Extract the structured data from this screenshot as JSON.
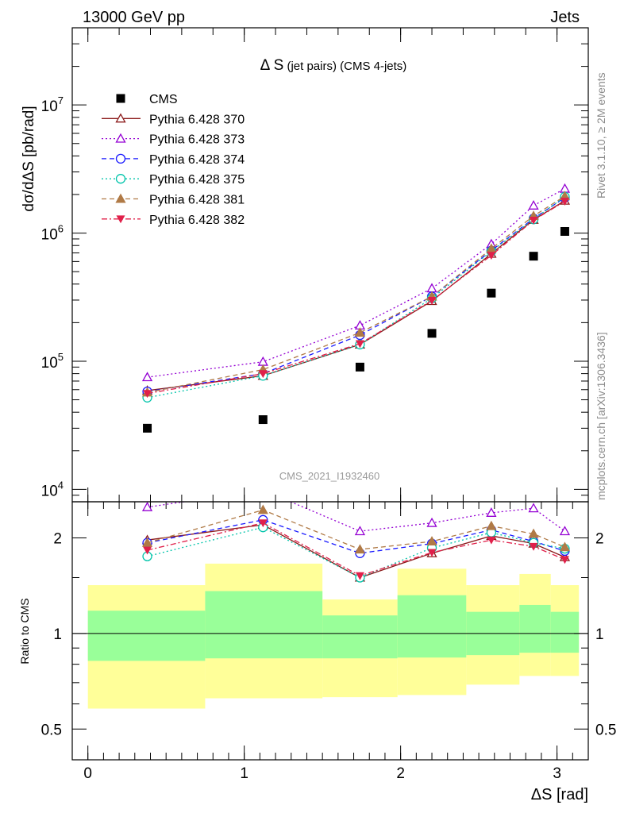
{
  "header": {
    "energy_label": "13000 GeV pp",
    "process_label": "Jets"
  },
  "side_text": {
    "rivet": "Rivet 3.1.10, ≥ 2M events",
    "mcplots": "mcplots.cern.ch [arXiv:1306.3436]"
  },
  "chart_data": [
    {
      "type": "scatter",
      "panel": "main",
      "title": "Δ S (jet pairs) (CMS 4-jets)",
      "title_main": "Δ S",
      "title_sub": " (jet pairs) (CMS 4-jets)",
      "ylabel": "dσ/dΔS [pb/rad]",
      "yscale": "log",
      "ylim": [
        8000,
        40000000
      ],
      "yticks": [
        {
          "v": 10000,
          "base": "10",
          "exp": "4"
        },
        {
          "v": 100000,
          "base": "10",
          "exp": "5"
        },
        {
          "v": 1000000,
          "base": "10",
          "exp": "6"
        },
        {
          "v": 10000000,
          "base": "10",
          "exp": "7"
        }
      ],
      "watermark": "CMS_2021_I1932460",
      "legend_position": "top-left",
      "x": [
        0.38,
        1.12,
        1.74,
        2.2,
        2.58,
        2.85,
        3.05
      ],
      "series": [
        {
          "name": "CMS",
          "color": "#000000",
          "marker": "square",
          "values": [
            30000,
            35000,
            90000,
            165000,
            340000,
            660000,
            1030000
          ]
        },
        {
          "name": "Pythia 6.428 370",
          "color": "#8b1a1a",
          "marker": "triangle-open",
          "dash": "solid",
          "values": [
            59000,
            77000,
            135000,
            295000,
            690000,
            1270000,
            1790000
          ]
        },
        {
          "name": "Pythia 6.428 373",
          "color": "#9400d3",
          "marker": "triangle-open",
          "dash": "dotted",
          "values": [
            75000,
            99000,
            190000,
            370000,
            820000,
            1640000,
            2220000
          ]
        },
        {
          "name": "Pythia 6.428 374",
          "color": "#1a1aff",
          "marker": "circle-open",
          "dash": "dashed",
          "values": [
            58000,
            80000,
            160000,
            320000,
            730000,
            1300000,
            1890000
          ]
        },
        {
          "name": "Pythia 6.428 375",
          "color": "#00c4aa",
          "marker": "circle-open",
          "dash": "dotted",
          "values": [
            52000,
            77000,
            135000,
            310000,
            720000,
            1280000,
            1920000
          ]
        },
        {
          "name": "Pythia 6.428 381",
          "color": "#b07a46",
          "marker": "triangle-filled",
          "dash": "dashed",
          "values": [
            57000,
            86000,
            167000,
            320000,
            755000,
            1360000,
            1940000
          ]
        },
        {
          "name": "Pythia 6.428 382",
          "color": "#e0204a",
          "marker": "triangle-down-filled",
          "dash": "dashdot",
          "values": [
            56000,
            80000,
            137000,
            298000,
            670000,
            1260000,
            1770000
          ]
        }
      ]
    },
    {
      "type": "scatter",
      "panel": "ratio",
      "xlabel": "ΔS [rad]",
      "ylabel": "Ratio to CMS",
      "yscale": "log",
      "ylim": [
        0.4,
        2.6
      ],
      "yticks": [
        0.5,
        1,
        2
      ],
      "xlim": [
        -0.1,
        3.2
      ],
      "xticks": [
        0,
        1,
        2,
        3
      ],
      "error_bands": {
        "edges": [
          0,
          0.75,
          1.5,
          1.98,
          2.42,
          2.76,
          2.96,
          3.14
        ],
        "inner_lo": [
          0.82,
          0.835,
          0.835,
          0.84,
          0.855,
          0.87,
          0.87
        ],
        "inner_hi": [
          1.18,
          1.36,
          1.14,
          1.32,
          1.17,
          1.23,
          1.17
        ],
        "outer_lo": [
          0.58,
          0.625,
          0.63,
          0.64,
          0.69,
          0.735,
          0.735
        ],
        "outer_hi": [
          1.42,
          1.66,
          1.28,
          1.6,
          1.42,
          1.54,
          1.42
        ],
        "inner_color": "#99ff99",
        "outer_color": "#ffff99"
      },
      "x": [
        0.38,
        1.12,
        1.74,
        2.2,
        2.58,
        2.85,
        3.05
      ],
      "series": [
        {
          "name": "Pythia 6.428 370",
          "values": [
            1.97,
            2.2,
            1.5,
            1.79,
            2.03,
            1.92,
            1.74
          ]
        },
        {
          "name": "Pythia 6.428 373",
          "values": [
            2.5,
            2.83,
            2.1,
            2.23,
            2.4,
            2.48,
            2.1
          ]
        },
        {
          "name": "Pythia 6.428 374",
          "values": [
            1.93,
            2.28,
            1.79,
            1.92,
            2.12,
            1.95,
            1.82
          ]
        },
        {
          "name": "Pythia 6.428 375",
          "values": [
            1.75,
            2.16,
            1.5,
            1.86,
            2.08,
            1.93,
            1.85
          ]
        },
        {
          "name": "Pythia 6.428 381",
          "values": [
            1.93,
            2.45,
            1.84,
            1.95,
            2.18,
            2.06,
            1.87
          ]
        },
        {
          "name": "Pythia 6.428 382",
          "values": [
            1.83,
            2.23,
            1.52,
            1.8,
            1.97,
            1.88,
            1.71
          ]
        }
      ]
    }
  ]
}
